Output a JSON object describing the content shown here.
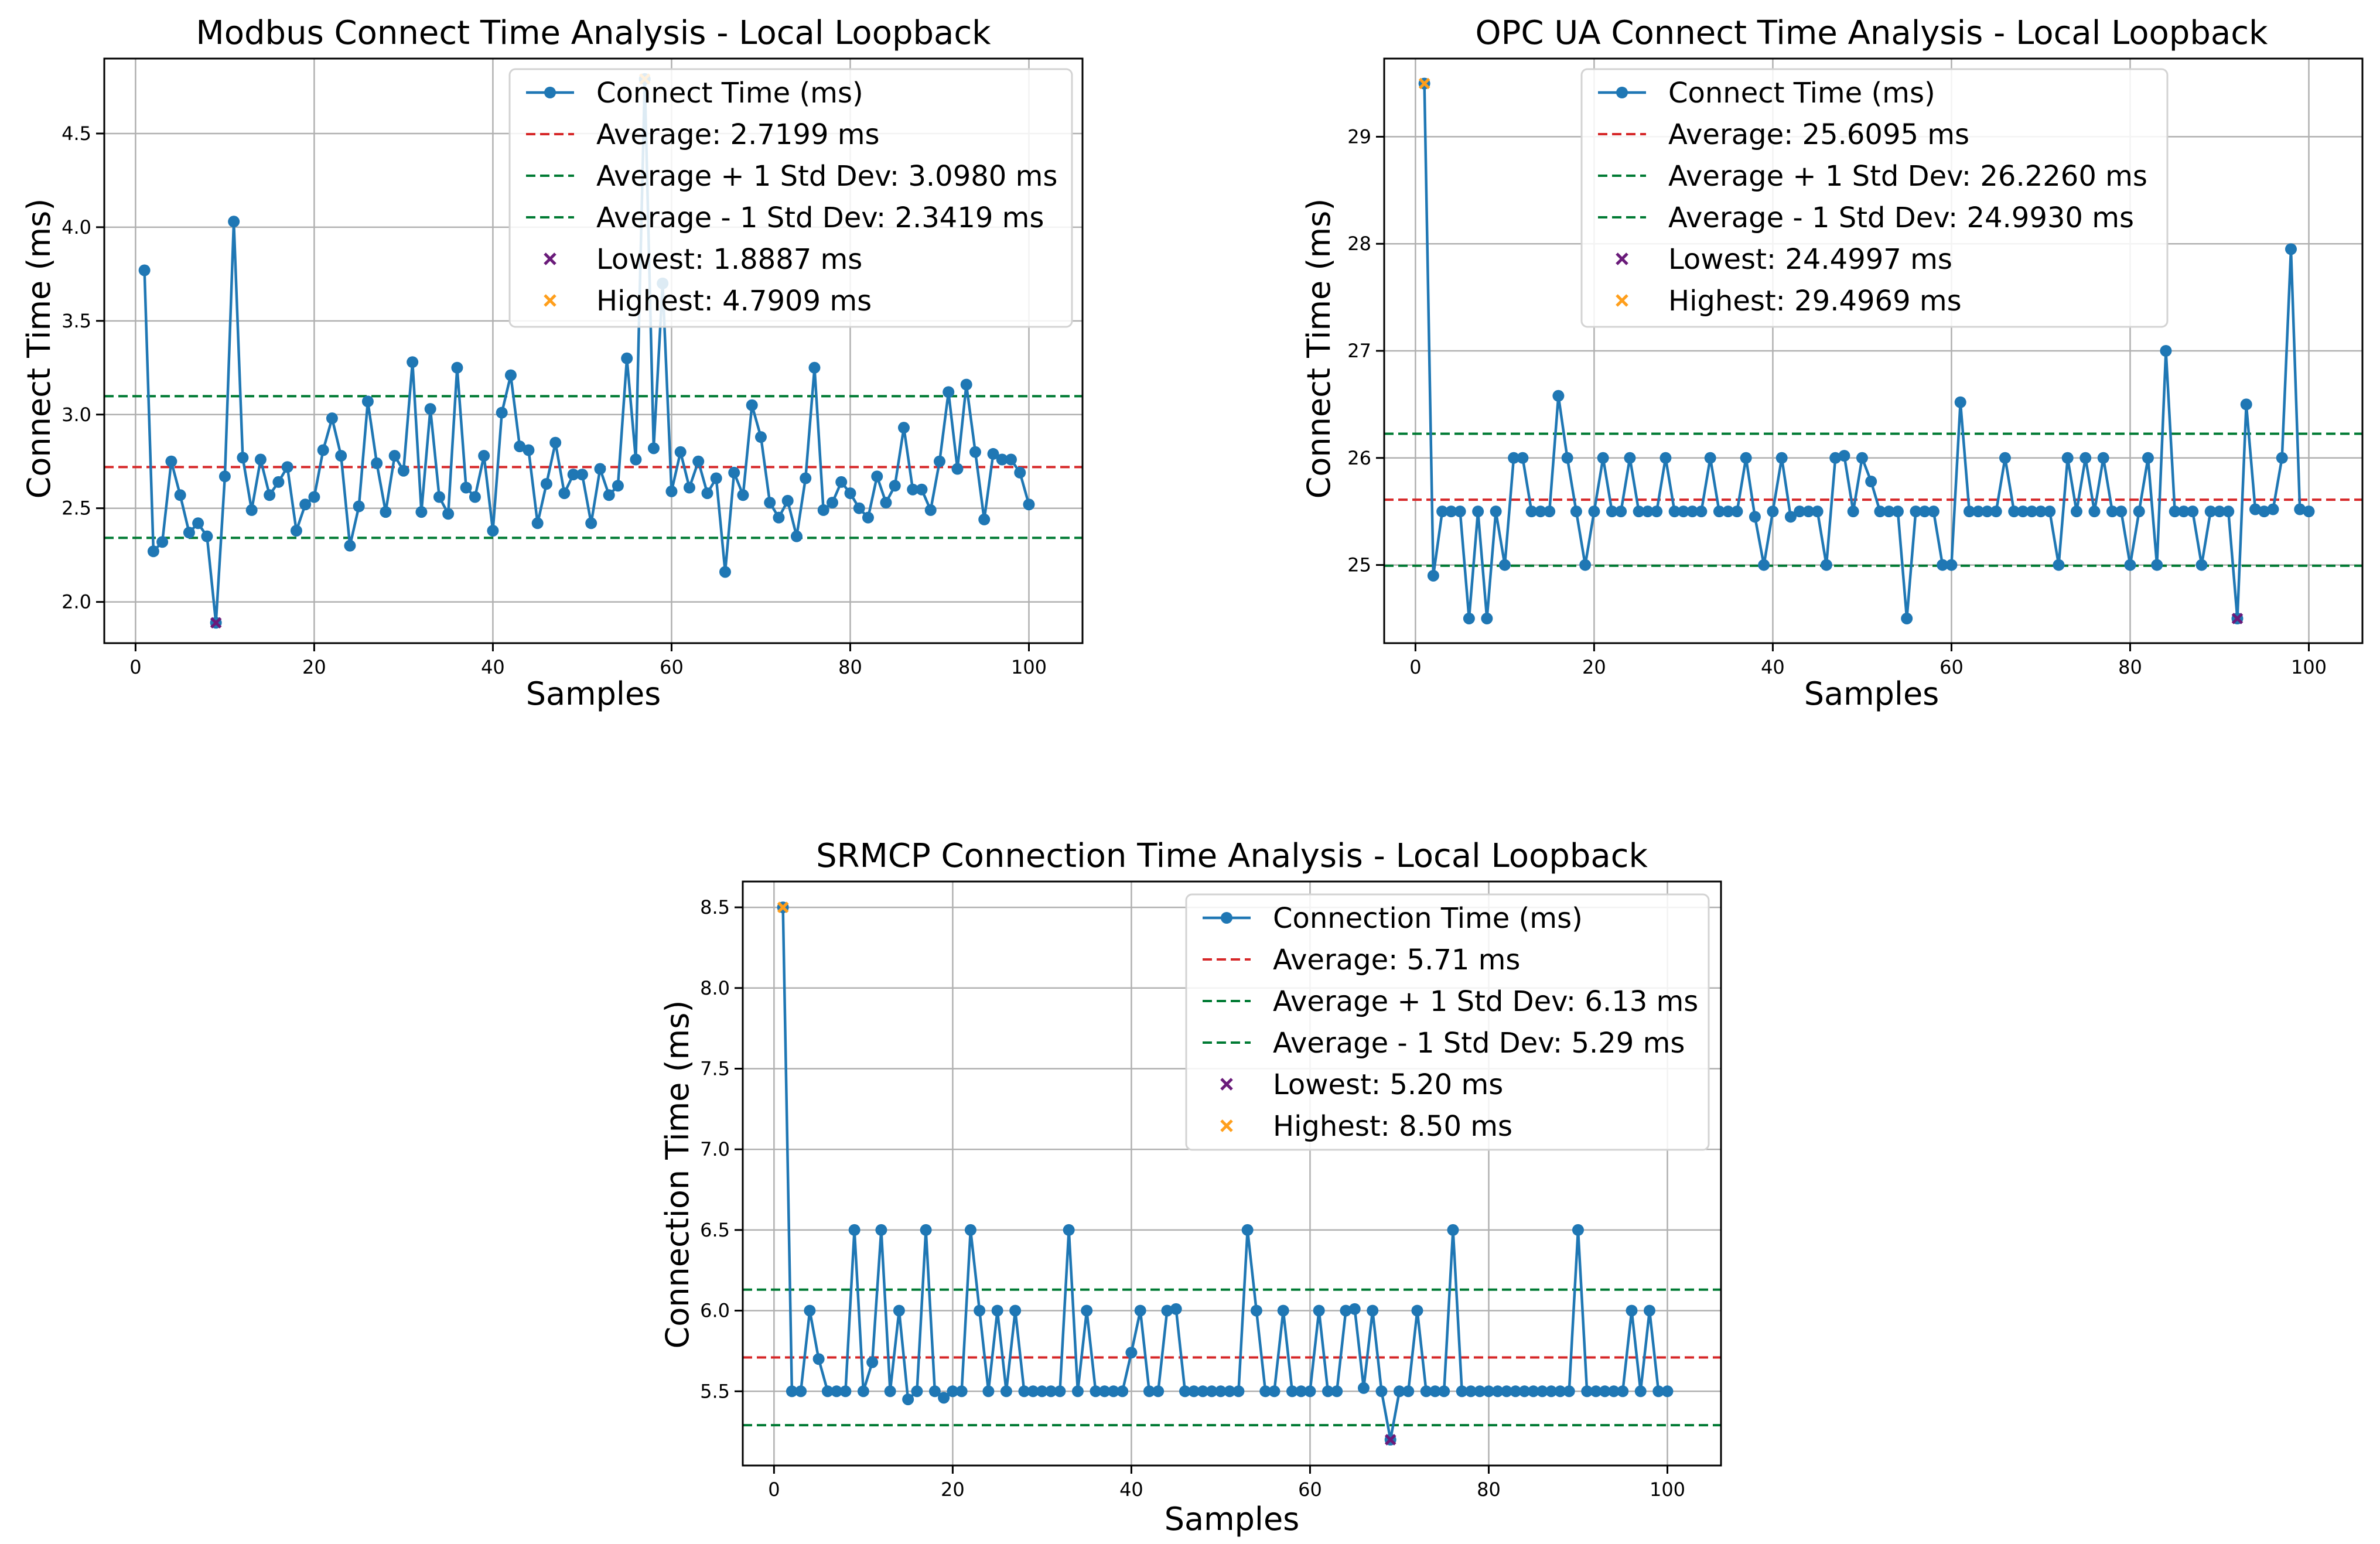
{
  "colors": {
    "series": "#1f77b4",
    "average": "#d62728",
    "std": "#007a33",
    "lowest": "#6a1b7a",
    "highest": "#ff9f1c",
    "grid": "#b0b0b0",
    "legend_border": "#d3d3d3"
  },
  "chart_data": [
    {
      "type": "line",
      "title": "Modbus Connect Time Analysis - Local Loopback",
      "xlabel": "Samples",
      "ylabel": "Connect Time (ms)",
      "xlim": [
        -3.5,
        106
      ],
      "ylim": [
        1.78,
        4.9
      ],
      "xticks": [
        0,
        20,
        40,
        60,
        80,
        100
      ],
      "yticks": [
        2.0,
        2.5,
        3.0,
        3.5,
        4.0,
        4.5
      ],
      "ytick_labels": [
        "2.0",
        "2.5",
        "3.0",
        "3.5",
        "4.0",
        "4.5"
      ],
      "grid": true,
      "legend_position": "upper-right",
      "series_name": "Connect Time (ms)",
      "values": [
        3.77,
        2.27,
        2.32,
        2.75,
        2.57,
        2.37,
        2.42,
        2.35,
        1.8887,
        2.67,
        4.03,
        2.77,
        2.49,
        2.76,
        2.57,
        2.64,
        2.72,
        2.38,
        2.52,
        2.56,
        2.81,
        2.98,
        2.78,
        2.3,
        2.51,
        3.07,
        2.74,
        2.48,
        2.78,
        2.7,
        3.28,
        2.48,
        3.03,
        2.56,
        2.47,
        3.25,
        2.61,
        2.56,
        2.78,
        2.38,
        3.01,
        3.21,
        2.83,
        2.81,
        2.42,
        2.63,
        2.85,
        2.58,
        2.68,
        2.68,
        2.42,
        2.71,
        2.57,
        2.62,
        3.3,
        2.76,
        4.7909,
        2.82,
        3.7,
        2.59,
        2.8,
        2.61,
        2.75,
        2.58,
        2.66,
        2.16,
        2.69,
        2.57,
        3.05,
        2.88,
        2.53,
        2.45,
        2.54,
        2.35,
        2.66,
        3.25,
        2.49,
        2.53,
        2.64,
        2.58,
        2.5,
        2.45,
        2.67,
        2.53,
        2.62,
        2.93,
        2.6,
        2.6,
        2.49,
        2.75,
        3.12,
        2.71,
        3.16,
        2.8,
        2.44,
        2.79,
        2.76,
        2.76,
        2.69,
        2.52
      ],
      "average": 2.7199,
      "std_upper": 3.098,
      "std_lower": 2.3419,
      "lowest": {
        "x": 9,
        "y": 1.8887
      },
      "highest": {
        "x": 57,
        "y": 4.7909
      },
      "legend": [
        "Connect Time (ms)",
        "Average: 2.7199 ms",
        "Average + 1 Std Dev: 3.0980 ms",
        "Average - 1 Std Dev: 2.3419 ms",
        "Lowest: 1.8887 ms",
        "Highest: 4.7909 ms"
      ]
    },
    {
      "type": "line",
      "title": "OPC UA Connect Time Analysis - Local Loopback",
      "xlabel": "Samples",
      "ylabel": "Connect Time (ms)",
      "xlim": [
        -3.5,
        106
      ],
      "ylim": [
        24.27,
        29.73
      ],
      "xticks": [
        0,
        20,
        40,
        60,
        80,
        100
      ],
      "yticks": [
        25,
        26,
        27,
        28,
        29
      ],
      "ytick_labels": [
        "25",
        "26",
        "27",
        "28",
        "29"
      ],
      "grid": true,
      "legend_position": "upper-right",
      "series_name": "Connect Time (ms)",
      "values": [
        29.4969,
        24.9,
        25.5,
        25.5,
        25.5,
        24.5,
        25.5,
        24.5,
        25.5,
        25.0,
        26.0,
        26.0,
        25.5,
        25.5,
        25.5,
        26.58,
        26.0,
        25.5,
        25.0,
        25.5,
        26.0,
        25.5,
        25.5,
        26.0,
        25.5,
        25.5,
        25.5,
        26.0,
        25.5,
        25.5,
        25.5,
        25.5,
        26.0,
        25.5,
        25.5,
        25.5,
        26.0,
        25.45,
        25.0,
        25.5,
        26.0,
        25.45,
        25.5,
        25.5,
        25.5,
        25.0,
        26.0,
        26.02,
        25.5,
        26.0,
        25.78,
        25.5,
        25.5,
        25.5,
        24.5,
        25.5,
        25.5,
        25.5,
        25.0,
        25.0,
        26.52,
        25.5,
        25.5,
        25.5,
        25.5,
        26.0,
        25.5,
        25.5,
        25.5,
        25.5,
        25.5,
        25.0,
        26.0,
        25.5,
        26.0,
        25.5,
        26.0,
        25.5,
        25.5,
        25.0,
        25.5,
        26.0,
        25.0,
        27.0,
        25.5,
        25.5,
        25.5,
        25.0,
        25.5,
        25.5,
        25.5,
        24.4997,
        26.5,
        25.52,
        25.5,
        25.52,
        26.0,
        27.95,
        25.52,
        25.5
      ],
      "average": 25.6095,
      "std_upper": 26.226,
      "std_lower": 24.993,
      "lowest": {
        "x": 92,
        "y": 24.4997
      },
      "highest": {
        "x": 1,
        "y": 29.4969
      },
      "legend": [
        "Connect Time (ms)",
        "Average: 25.6095 ms",
        "Average + 1 Std Dev: 26.2260 ms",
        "Average - 1 Std Dev: 24.9930 ms",
        "Lowest: 24.4997 ms",
        "Highest: 29.4969 ms"
      ]
    },
    {
      "type": "line",
      "title": "SRMCP Connection Time Analysis - Local Loopback",
      "xlabel": "Samples",
      "ylabel": "Connection Time (ms)",
      "xlim": [
        -3.5,
        106
      ],
      "ylim": [
        5.04,
        8.66
      ],
      "xticks": [
        0,
        20,
        40,
        60,
        80,
        100
      ],
      "yticks": [
        5.5,
        6.0,
        6.5,
        7.0,
        7.5,
        8.0,
        8.5
      ],
      "ytick_labels": [
        "5.5",
        "6.0",
        "6.5",
        "7.0",
        "7.5",
        "8.0",
        "8.5"
      ],
      "grid": true,
      "legend_position": "upper-right",
      "series_name": "Connection Time (ms)",
      "values": [
        8.5,
        5.5,
        5.5,
        6.0,
        5.7,
        5.5,
        5.5,
        5.5,
        6.5,
        5.5,
        5.68,
        6.5,
        5.5,
        6.0,
        5.45,
        5.5,
        6.5,
        5.5,
        5.46,
        5.5,
        5.5,
        6.5,
        6.0,
        5.5,
        6.0,
        5.5,
        6.0,
        5.5,
        5.5,
        5.5,
        5.5,
        5.5,
        6.5,
        5.5,
        6.0,
        5.5,
        5.5,
        5.5,
        5.5,
        5.74,
        6.0,
        5.5,
        5.5,
        6.0,
        6.01,
        5.5,
        5.5,
        5.5,
        5.5,
        5.5,
        5.5,
        5.5,
        6.5,
        6.0,
        5.5,
        5.5,
        6.0,
        5.5,
        5.5,
        5.5,
        6.0,
        5.5,
        5.5,
        6.0,
        6.01,
        5.52,
        6.0,
        5.5,
        5.2,
        5.5,
        5.5,
        6.0,
        5.5,
        5.5,
        5.5,
        6.5,
        5.5,
        5.5,
        5.5,
        5.5,
        5.5,
        5.5,
        5.5,
        5.5,
        5.5,
        5.5,
        5.5,
        5.5,
        5.5,
        6.5,
        5.5,
        5.5,
        5.5,
        5.5,
        5.5,
        6.0,
        5.5,
        6.0,
        5.5,
        5.5
      ],
      "average": 5.71,
      "std_upper": 6.13,
      "std_lower": 5.29,
      "lowest": {
        "x": 69,
        "y": 5.2
      },
      "highest": {
        "x": 1,
        "y": 8.5
      },
      "legend": [
        "Connection Time (ms)",
        "Average: 5.71 ms",
        "Average + 1 Std Dev: 6.13 ms",
        "Average - 1 Std Dev: 5.29 ms",
        "Lowest: 5.20 ms",
        "Highest: 8.50 ms"
      ]
    }
  ]
}
